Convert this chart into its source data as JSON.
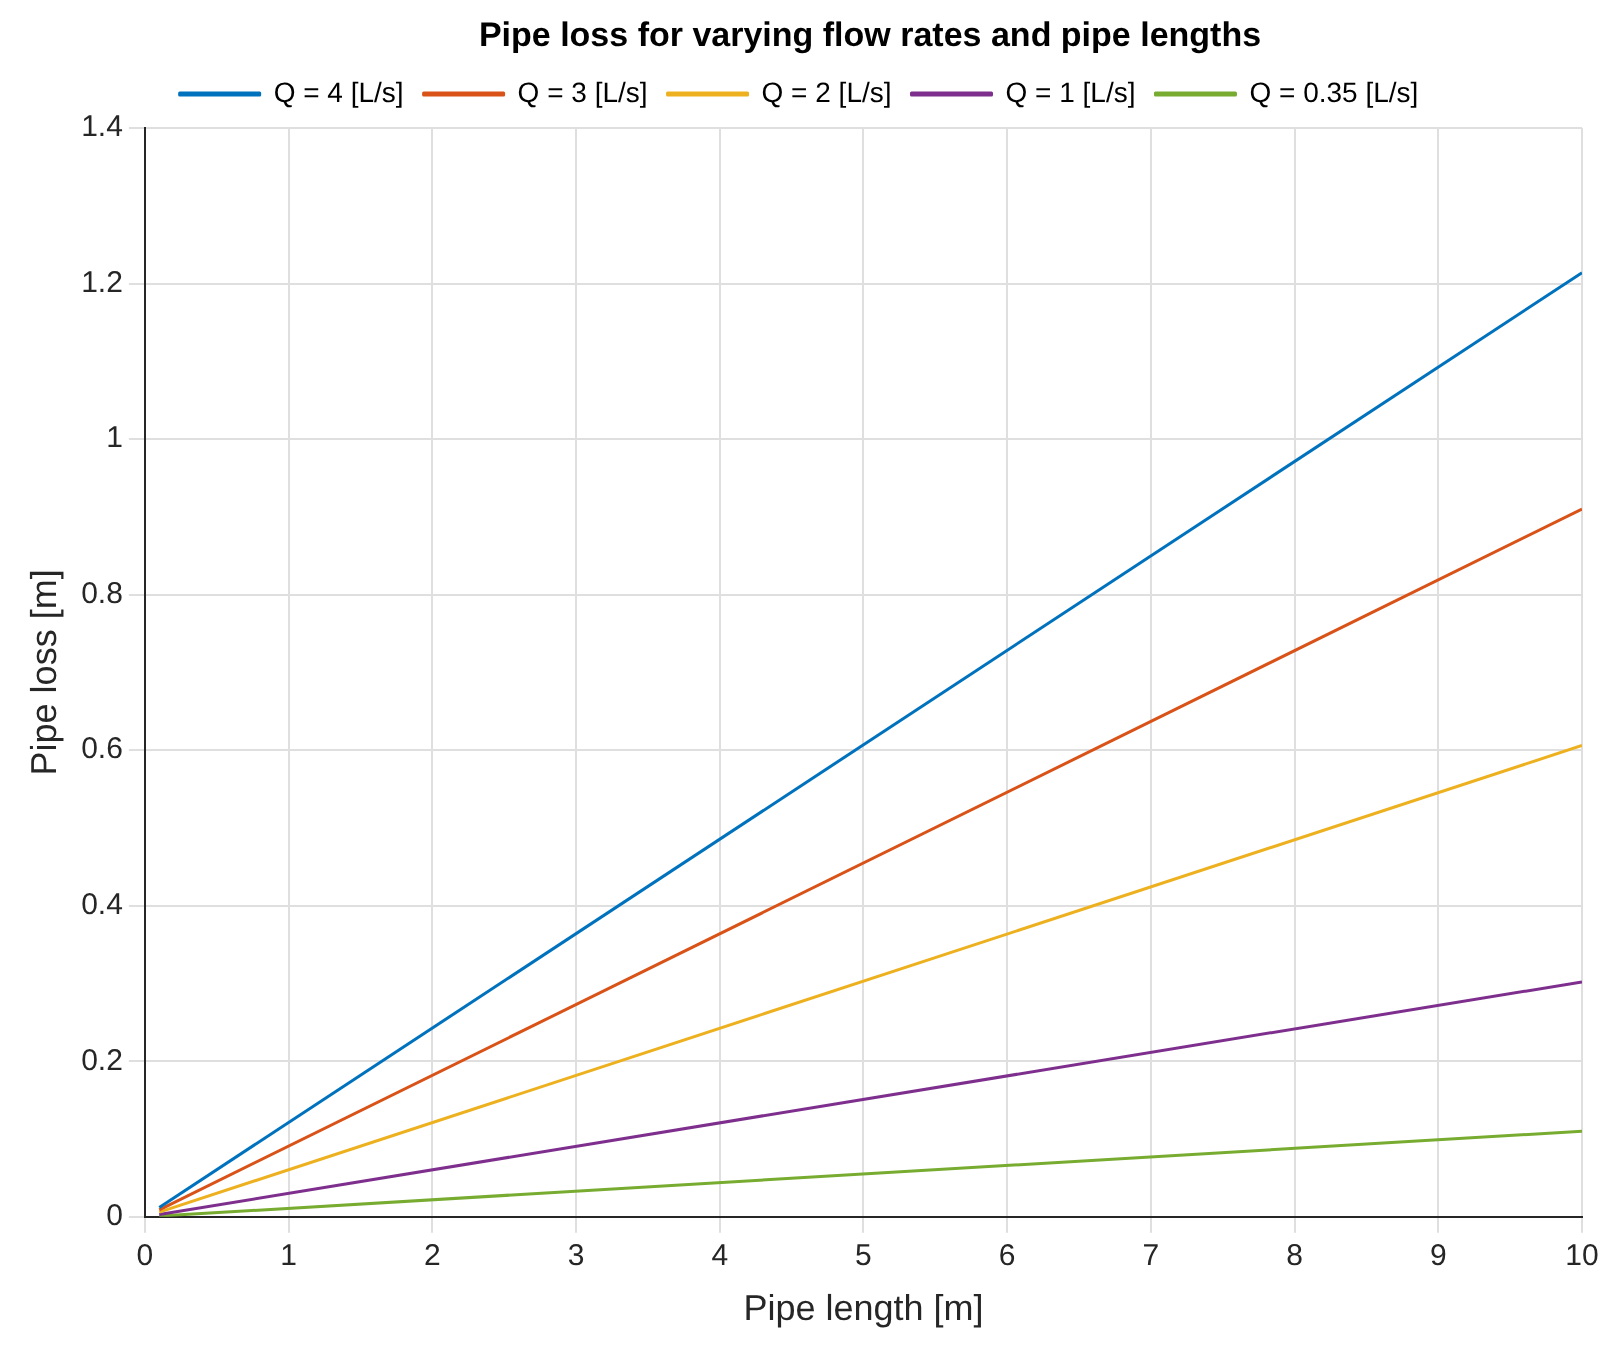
{
  "chart_data": {
    "type": "line",
    "title": "Pipe loss for varying flow rates and pipe lengths",
    "xlabel": "Pipe length [m]",
    "ylabel": "Pipe loss [m]",
    "x": [
      0.1,
      10
    ],
    "series": [
      {
        "name": "Q = 4 [L/s]",
        "color": "#0072bd",
        "values": [
          0.012,
          1.214
        ]
      },
      {
        "name": "Q = 3 [L/s]",
        "color": "#d95319",
        "values": [
          0.009,
          0.91
        ]
      },
      {
        "name": "Q = 2 [L/s]",
        "color": "#edb120",
        "values": [
          0.006,
          0.606
        ]
      },
      {
        "name": "Q = 1 [L/s]",
        "color": "#7e2f8e",
        "values": [
          0.003,
          0.302
        ]
      },
      {
        "name": "Q = 0.35 [L/s]",
        "color": "#77ac30",
        "values": [
          0.001,
          0.11
        ]
      }
    ],
    "xlim": [
      0,
      10
    ],
    "xticks": [
      0,
      1,
      2,
      3,
      4,
      5,
      6,
      7,
      8,
      9,
      10
    ],
    "ylim": [
      0,
      1.4
    ],
    "yticks": [
      0,
      0.2,
      0.4,
      0.6,
      0.8,
      1,
      1.2,
      1.4
    ],
    "grid": true,
    "legend": "top",
    "marker": "none",
    "line_style": "solid"
  }
}
